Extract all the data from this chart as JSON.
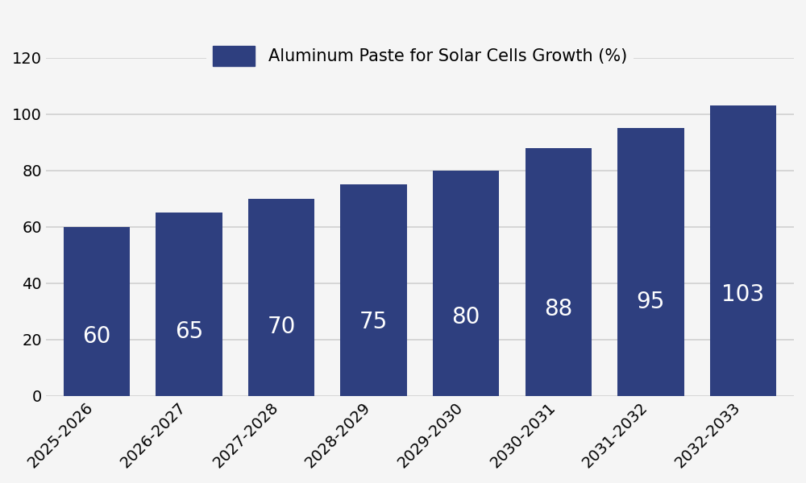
{
  "categories": [
    "2025-2026",
    "2026-2027",
    "2027-2028",
    "2028-2029",
    "2029-2030",
    "2030-2031",
    "2031-2032",
    "2032-2033"
  ],
  "values": [
    60,
    65,
    70,
    75,
    80,
    88,
    95,
    103
  ],
  "bar_color": "#2e3f7f",
  "label_color": "#ffffff",
  "background_color": "#f5f5f5",
  "grid_color": "#d0d0d0",
  "legend_label": "Aluminum Paste for Solar Cells Growth (%)",
  "ylim": [
    0,
    120
  ],
  "yticks": [
    0,
    20,
    40,
    60,
    80,
    100,
    120
  ],
  "tick_fontsize": 14,
  "legend_fontsize": 15,
  "bar_value_fontsize": 20
}
